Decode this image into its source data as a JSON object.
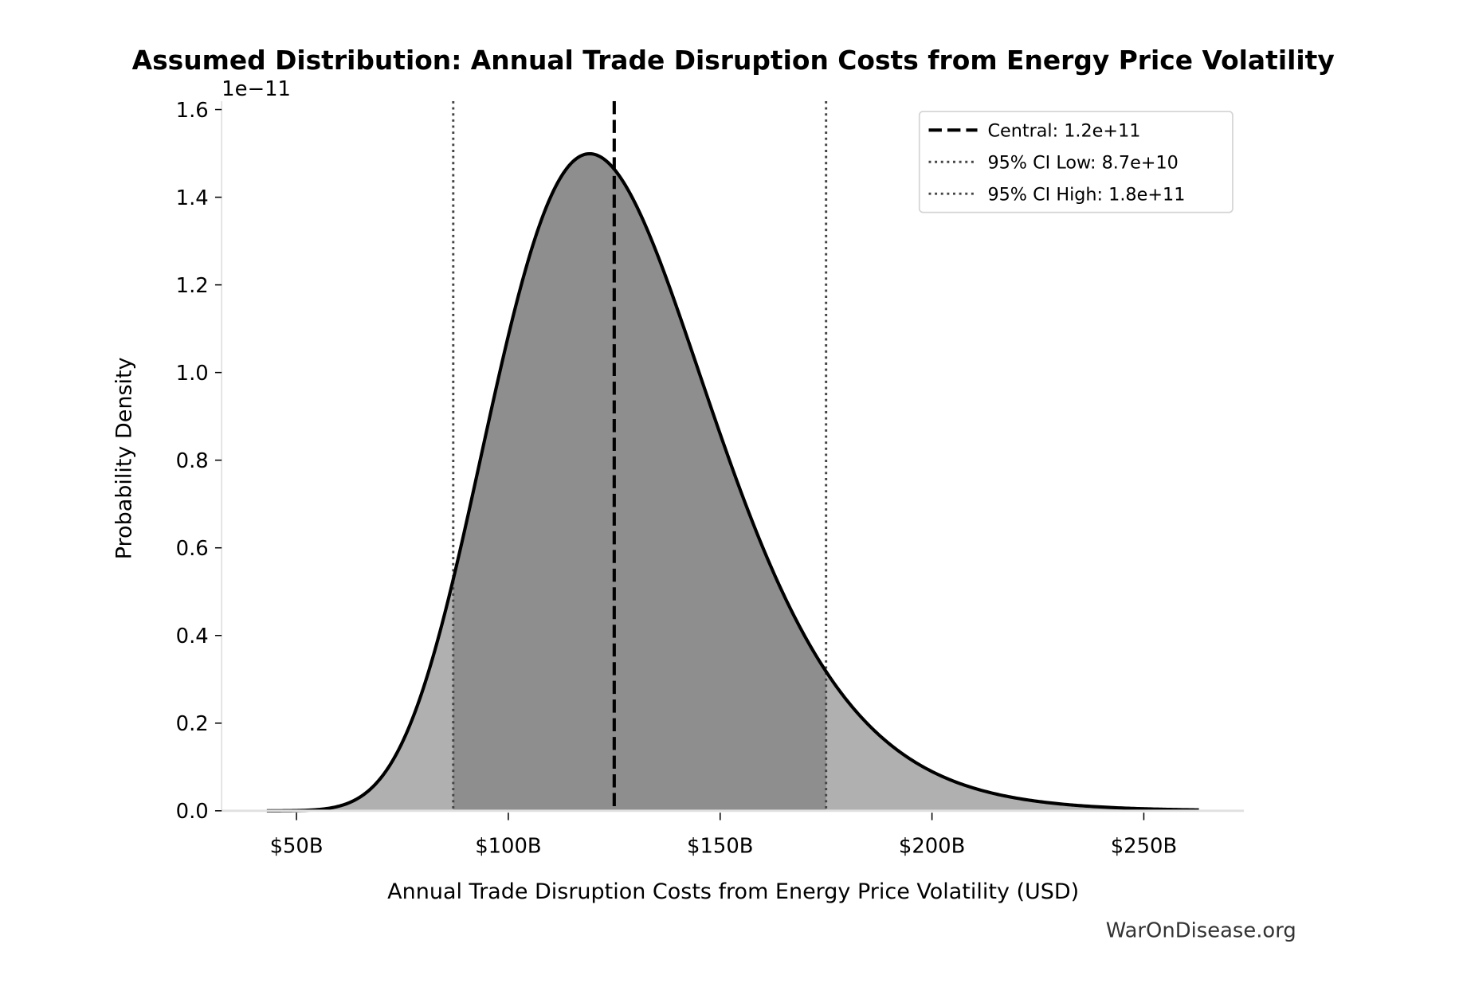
{
  "chart_data": {
    "type": "area",
    "title": "Assumed Distribution: Annual Trade Disruption Costs from Energy Price Volatility",
    "xlabel": "Annual Trade Disruption Costs from Energy Price Volatility (USD)",
    "ylabel": "Probability Density",
    "y_offset_text": "1e−11",
    "xlim": [
      32500000000.0,
      273500000000.0
    ],
    "ylim": [
      0,
      1.62e-11
    ],
    "x_ticks": [
      50000000000.0,
      100000000000.0,
      150000000000.0,
      200000000000.0,
      250000000000.0
    ],
    "x_tick_labels": [
      "$50B",
      "$100B",
      "$150B",
      "$200B",
      "$250B"
    ],
    "y_ticks": [
      0,
      2e-12,
      4e-12,
      6e-12,
      8e-12,
      1e-11,
      1.2e-11,
      1.4e-11,
      1.6e-11
    ],
    "y_tick_labels": [
      "0.0",
      "0.2",
      "0.4",
      "0.6",
      "0.8",
      "1.0",
      "1.2",
      "1.4",
      "1.6"
    ],
    "grid": false,
    "distribution": {
      "type": "lognormal",
      "median": 125000000000.0,
      "sigma": 0.218,
      "x_range": [
        43000000000.0,
        263000000000.0
      ]
    },
    "central": 125000000000.0,
    "ci_low": 87000000000.0,
    "ci_high": 175000000000.0,
    "legend": {
      "placement": "upper right",
      "entries": [
        {
          "label": "Central: 1.2e+11",
          "style": "dashed",
          "color": "#000000"
        },
        {
          "label": "95% CI Low: 8.7e+10",
          "style": "dotted",
          "color": "#444444"
        },
        {
          "label": "95% CI High: 1.8e+11",
          "style": "dotted",
          "color": "#444444"
        }
      ]
    },
    "colors": {
      "tail_fill": "#b0b0b0",
      "ci_fill": "#8e8e8e",
      "curve": "#000000"
    }
  },
  "watermark": "WarOnDisease.org"
}
